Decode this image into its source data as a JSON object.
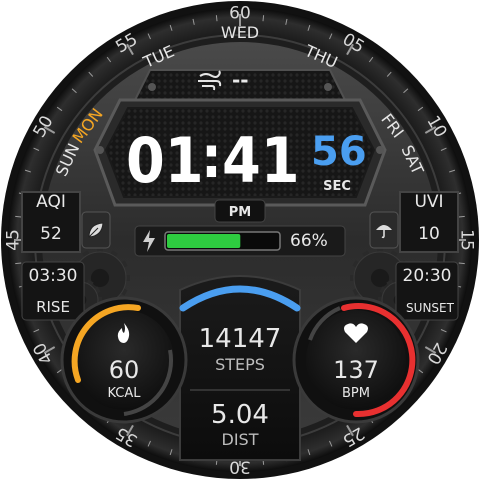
{
  "bezel": {
    "numbers": [
      {
        "label": "60",
        "angle": 0
      },
      {
        "label": "05",
        "angle": 30
      },
      {
        "label": "10",
        "angle": 60
      },
      {
        "label": "15",
        "angle": 90
      },
      {
        "label": "20",
        "angle": 120
      },
      {
        "label": "25",
        "angle": 150
      },
      {
        "label": "30",
        "angle": 180
      },
      {
        "label": "35",
        "angle": 210
      },
      {
        "label": "40",
        "angle": 240
      },
      {
        "label": "45",
        "angle": 270
      },
      {
        "label": "50",
        "angle": 300
      },
      {
        "label": "55",
        "angle": 330
      }
    ]
  },
  "days": {
    "items": [
      "SUN",
      "MON",
      "TUE",
      "WED",
      "THU",
      "FRI",
      "SAT"
    ],
    "active": "MON",
    "active_color": "#f5a623"
  },
  "weather": {
    "icon": "wind-cloud-icon",
    "value": "--"
  },
  "time": {
    "hours": "01",
    "colon": ":",
    "minutes": "41",
    "seconds": "56",
    "sec_label": "SEC",
    "ampm": "PM",
    "seconds_color": "#4a9ef0"
  },
  "aqi": {
    "label": "AQI",
    "value": "52",
    "icon": "leaf-icon"
  },
  "uvi": {
    "label": "UVI",
    "value": "10",
    "icon": "umbrella-icon"
  },
  "battery": {
    "icon": "lightning-icon",
    "percent_text": "66%",
    "level": 0.66,
    "fill_color": "#2ecc40"
  },
  "sunrise": {
    "time": "03:30",
    "label": "RISE"
  },
  "sunset": {
    "time": "20:30",
    "label": "SUNSET"
  },
  "calories": {
    "value": "60",
    "label": "KCAL",
    "icon": "flame-icon",
    "arc_color": "#f5a623"
  },
  "steps": {
    "value": "14147",
    "label": "STEPS",
    "arc_color": "#4a9ef0"
  },
  "heart": {
    "value": "137",
    "label": "BPM",
    "icon": "heart-icon",
    "arc_color": "#e83030"
  },
  "distance": {
    "value": "5.04",
    "label": "DIST"
  }
}
